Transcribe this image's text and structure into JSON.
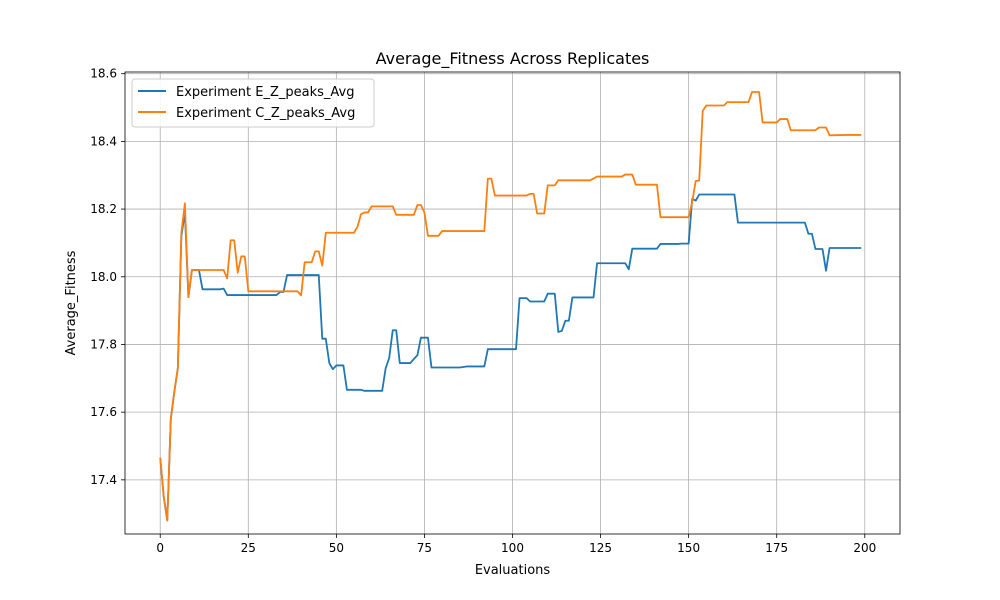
{
  "chart_data": {
    "type": "line",
    "title": "Average_Fitness Across Replicates",
    "xlabel": "Evaluations",
    "ylabel": "Average_Fitness",
    "xlim": [
      -10,
      210
    ],
    "ylim": [
      17.24,
      18.605
    ],
    "xticks": [
      0,
      25,
      50,
      75,
      100,
      125,
      150,
      175,
      200
    ],
    "yticks": [
      17.4,
      17.6,
      17.8,
      18.0,
      18.2,
      18.4,
      18.6
    ],
    "grid": true,
    "legend_position": "upper-left",
    "series": [
      {
        "name": "Experiment E_Z_peaks_Avg",
        "color": "#1f77b4",
        "points": [
          [
            0,
            17.465
          ],
          [
            1,
            17.35
          ],
          [
            2,
            17.28
          ],
          [
            3,
            17.58
          ],
          [
            4,
            17.66
          ],
          [
            5,
            17.73
          ],
          [
            6,
            18.12
          ],
          [
            7,
            18.19
          ],
          [
            8,
            17.94
          ],
          [
            9,
            18.02
          ],
          [
            10,
            18.02
          ],
          [
            11,
            18.02
          ],
          [
            12,
            17.963
          ],
          [
            13,
            17.963
          ],
          [
            14,
            17.963
          ],
          [
            15,
            17.963
          ],
          [
            16,
            17.963
          ],
          [
            17,
            17.963
          ],
          [
            18,
            17.965
          ],
          [
            19,
            17.946
          ],
          [
            20,
            17.946
          ],
          [
            25,
            17.946
          ],
          [
            30,
            17.946
          ],
          [
            33,
            17.946
          ],
          [
            34,
            17.955
          ],
          [
            35,
            17.955
          ],
          [
            36,
            18.005
          ],
          [
            40,
            18.005
          ],
          [
            44,
            18.005
          ],
          [
            45,
            18.005
          ],
          [
            46,
            17.817
          ],
          [
            47,
            17.817
          ],
          [
            48,
            17.745
          ],
          [
            49,
            17.727
          ],
          [
            50,
            17.738
          ],
          [
            51,
            17.738
          ],
          [
            52,
            17.738
          ],
          [
            53,
            17.666
          ],
          [
            55,
            17.666
          ],
          [
            57,
            17.666
          ],
          [
            58,
            17.663
          ],
          [
            62,
            17.663
          ],
          [
            63,
            17.663
          ],
          [
            64,
            17.73
          ],
          [
            65,
            17.76
          ],
          [
            66,
            17.842
          ],
          [
            67,
            17.842
          ],
          [
            68,
            17.745
          ],
          [
            70,
            17.745
          ],
          [
            71,
            17.745
          ],
          [
            72,
            17.757
          ],
          [
            73,
            17.768
          ],
          [
            74,
            17.82
          ],
          [
            75,
            17.82
          ],
          [
            76,
            17.82
          ],
          [
            77,
            17.732
          ],
          [
            80,
            17.732
          ],
          [
            85,
            17.732
          ],
          [
            87,
            17.735
          ],
          [
            90,
            17.735
          ],
          [
            92,
            17.735
          ],
          [
            93,
            17.786
          ],
          [
            95,
            17.786
          ],
          [
            100,
            17.786
          ],
          [
            101,
            17.786
          ],
          [
            102,
            17.937
          ],
          [
            104,
            17.937
          ],
          [
            105,
            17.927
          ],
          [
            108,
            17.927
          ],
          [
            109,
            17.927
          ],
          [
            110,
            17.95
          ],
          [
            111,
            17.95
          ],
          [
            112,
            17.95
          ],
          [
            113,
            17.837
          ],
          [
            114,
            17.84
          ],
          [
            115,
            17.87
          ],
          [
            116,
            17.87
          ],
          [
            117,
            17.939
          ],
          [
            120,
            17.939
          ],
          [
            121,
            17.939
          ],
          [
            122,
            17.939
          ],
          [
            123,
            17.939
          ],
          [
            124,
            18.04
          ],
          [
            125,
            18.04
          ],
          [
            130,
            18.04
          ],
          [
            132,
            18.04
          ],
          [
            133,
            18.022
          ],
          [
            134,
            18.083
          ],
          [
            135,
            18.083
          ],
          [
            140,
            18.083
          ],
          [
            141,
            18.083
          ],
          [
            142,
            18.097
          ],
          [
            145,
            18.097
          ],
          [
            147,
            18.097
          ],
          [
            148,
            18.098
          ],
          [
            150,
            18.098
          ],
          [
            151,
            18.23
          ],
          [
            152,
            18.225
          ],
          [
            153,
            18.243
          ],
          [
            155,
            18.243
          ],
          [
            160,
            18.243
          ],
          [
            163,
            18.243
          ],
          [
            164,
            18.16
          ],
          [
            165,
            18.16
          ],
          [
            170,
            18.16
          ],
          [
            175,
            18.16
          ],
          [
            180,
            18.16
          ],
          [
            183,
            18.16
          ],
          [
            184,
            18.127
          ],
          [
            185,
            18.127
          ],
          [
            186,
            18.082
          ],
          [
            188,
            18.082
          ],
          [
            189,
            18.018
          ],
          [
            190,
            18.085
          ],
          [
            195,
            18.085
          ],
          [
            199,
            18.085
          ]
        ]
      },
      {
        "name": "Experiment C_Z_peaks_Avg",
        "color": "#ff7f0e",
        "points": [
          [
            0,
            17.465
          ],
          [
            1,
            17.35
          ],
          [
            2,
            17.28
          ],
          [
            3,
            17.58
          ],
          [
            4,
            17.66
          ],
          [
            5,
            17.73
          ],
          [
            6,
            18.13
          ],
          [
            7,
            18.217
          ],
          [
            8,
            17.94
          ],
          [
            9,
            18.02
          ],
          [
            10,
            18.02
          ],
          [
            12,
            18.02
          ],
          [
            15,
            18.02
          ],
          [
            18,
            18.02
          ],
          [
            19,
            17.995
          ],
          [
            20,
            18.108
          ],
          [
            21,
            18.108
          ],
          [
            22,
            18.012
          ],
          [
            23,
            18.06
          ],
          [
            24,
            18.06
          ],
          [
            25,
            17.957
          ],
          [
            30,
            17.957
          ],
          [
            35,
            17.957
          ],
          [
            38,
            17.957
          ],
          [
            39,
            17.957
          ],
          [
            40,
            17.945
          ],
          [
            41,
            18.043
          ],
          [
            43,
            18.043
          ],
          [
            44,
            18.075
          ],
          [
            45,
            18.075
          ],
          [
            46,
            18.033
          ],
          [
            47,
            18.13
          ],
          [
            50,
            18.13
          ],
          [
            55,
            18.13
          ],
          [
            56,
            18.148
          ],
          [
            57,
            18.185
          ],
          [
            58,
            18.19
          ],
          [
            59,
            18.19
          ],
          [
            60,
            18.208
          ],
          [
            61,
            18.208
          ],
          [
            65,
            18.208
          ],
          [
            66,
            18.208
          ],
          [
            67,
            18.183
          ],
          [
            70,
            18.183
          ],
          [
            72,
            18.183
          ],
          [
            73,
            18.212
          ],
          [
            74,
            18.212
          ],
          [
            75,
            18.19
          ],
          [
            76,
            18.121
          ],
          [
            78,
            18.121
          ],
          [
            79,
            18.121
          ],
          [
            80,
            18.135
          ],
          [
            85,
            18.135
          ],
          [
            90,
            18.135
          ],
          [
            92,
            18.135
          ],
          [
            93,
            18.29
          ],
          [
            94,
            18.29
          ],
          [
            95,
            18.24
          ],
          [
            100,
            18.24
          ],
          [
            104,
            18.24
          ],
          [
            105,
            18.245
          ],
          [
            106,
            18.245
          ],
          [
            107,
            18.187
          ],
          [
            108,
            18.187
          ],
          [
            109,
            18.187
          ],
          [
            110,
            18.27
          ],
          [
            111,
            18.27
          ],
          [
            112,
            18.27
          ],
          [
            113,
            18.285
          ],
          [
            115,
            18.285
          ],
          [
            120,
            18.285
          ],
          [
            122,
            18.285
          ],
          [
            123,
            18.29
          ],
          [
            124,
            18.296
          ],
          [
            125,
            18.296
          ],
          [
            130,
            18.296
          ],
          [
            131,
            18.296
          ],
          [
            132,
            18.302
          ],
          [
            134,
            18.302
          ],
          [
            135,
            18.272
          ],
          [
            140,
            18.272
          ],
          [
            141,
            18.272
          ],
          [
            142,
            18.176
          ],
          [
            145,
            18.176
          ],
          [
            149,
            18.176
          ],
          [
            150,
            18.176
          ],
          [
            151,
            18.22
          ],
          [
            152,
            18.283
          ],
          [
            153,
            18.284
          ],
          [
            154,
            18.49
          ],
          [
            155,
            18.506
          ],
          [
            158,
            18.506
          ],
          [
            160,
            18.506
          ],
          [
            161,
            18.516
          ],
          [
            165,
            18.516
          ],
          [
            166,
            18.516
          ],
          [
            167,
            18.516
          ],
          [
            168,
            18.546
          ],
          [
            170,
            18.546
          ],
          [
            171,
            18.456
          ],
          [
            175,
            18.456
          ],
          [
            176,
            18.466
          ],
          [
            178,
            18.466
          ],
          [
            179,
            18.433
          ],
          [
            180,
            18.433
          ],
          [
            185,
            18.433
          ],
          [
            186,
            18.433
          ],
          [
            187,
            18.441
          ],
          [
            189,
            18.441
          ],
          [
            190,
            18.418
          ],
          [
            195,
            18.419
          ],
          [
            199,
            18.419
          ]
        ]
      }
    ]
  }
}
